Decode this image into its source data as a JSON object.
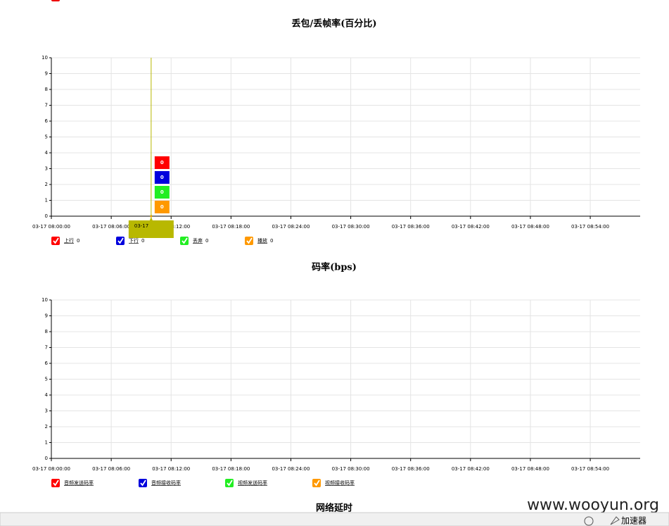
{
  "chart_data": [
    {
      "type": "line",
      "title": "丢包/丢帧率(百分比)",
      "x": [
        "03-17 08:10:00"
      ],
      "series": [
        {
          "name": "上行",
          "color": "#ff0000",
          "values": [
            0
          ]
        },
        {
          "name": "下行",
          "color": "#0000dd",
          "values": [
            0
          ]
        },
        {
          "name": "丢弃",
          "color": "#22ee22",
          "values": [
            0
          ]
        },
        {
          "name": "播放",
          "color": "#ff9900",
          "values": [
            0
          ]
        }
      ],
      "xlim": [
        "03-17 08:00:00",
        "03-17 08:59:00"
      ],
      "xticks": [
        "03-17 08:00:00",
        "03-17 08:06:00",
        "03-17 08:12:00",
        "03-17 08:18:00",
        "03-17 08:24:00",
        "03-17 08:30:00",
        "03-17 08:36:00",
        "03-17 08:42:00",
        "03-17 08:48:00",
        "03-17 08:54:00"
      ],
      "ylim": [
        0,
        10
      ],
      "yticks": [
        0,
        1,
        2,
        3,
        4,
        5,
        6,
        7,
        8,
        9,
        10
      ],
      "grid": true,
      "tooltip": {
        "title": "03-17",
        "color": "#b8b800"
      }
    },
    {
      "type": "line",
      "title": "码率(bps)",
      "x": [],
      "series": [
        {
          "name": "音频发送码率",
          "color": "#ff0000",
          "values": []
        },
        {
          "name": "音频接收码率",
          "color": "#0000dd",
          "values": []
        },
        {
          "name": "视频发送码率",
          "color": "#22ee22",
          "values": []
        },
        {
          "name": "视频接收码率",
          "color": "#ff9900",
          "values": []
        }
      ],
      "xlim": [
        "03-17 08:00:00",
        "03-17 08:59:00"
      ],
      "xticks": [
        "03-17 08:00:00",
        "03-17 08:06:00",
        "03-17 08:12:00",
        "03-17 08:18:00",
        "03-17 08:24:00",
        "03-17 08:30:00",
        "03-17 08:36:00",
        "03-17 08:42:00",
        "03-17 08:48:00",
        "03-17 08:54:00"
      ],
      "ylim": [
        0,
        10
      ],
      "yticks": [
        0,
        1,
        2,
        3,
        4,
        5,
        6,
        7,
        8,
        9,
        10
      ],
      "grid": true
    }
  ],
  "next_title": "网络延时",
  "footer": {
    "watermark": "www.wooyun.org",
    "toolbar": "加速器"
  }
}
